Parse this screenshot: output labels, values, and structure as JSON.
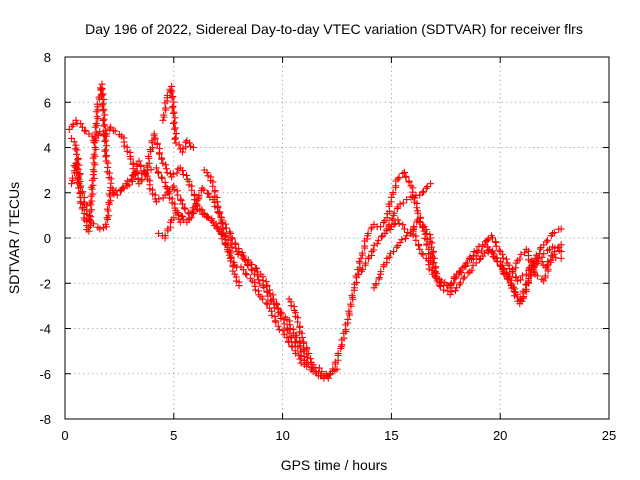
{
  "chart_data": {
    "type": "scatter",
    "title": "Day 196 of 2022, Sidereal Day-to-day VTEC variation (SDTVAR) for receiver flrs",
    "xlabel": "GPS time / hours",
    "ylabel": "SDTVAR / TECUs",
    "xlim": [
      0,
      25
    ],
    "ylim": [
      -8,
      8
    ],
    "xticks": [
      0,
      5,
      10,
      15,
      20,
      25
    ],
    "yticks": [
      -8,
      -6,
      -4,
      -2,
      0,
      2,
      4,
      6,
      8
    ],
    "grid": true,
    "marker": "plus",
    "color": "#ff0000",
    "series": [
      {
        "name": "track-1",
        "x": [
          0.2,
          0.5,
          0.8,
          1.1,
          1.3,
          1.6,
          1.9,
          2.1,
          2.6,
          3.0,
          3.4,
          3.8,
          4.2,
          4.7,
          5.1,
          5.6,
          6.0,
          6.4,
          6.8,
          7.1,
          7.5,
          7.9,
          8.3,
          8.7,
          9.1,
          9.5,
          9.9,
          10.3,
          10.7,
          11.1,
          11.5,
          11.9,
          12.2
        ],
        "y": [
          4.8,
          5.2,
          4.9,
          4.6,
          4.3,
          4.7,
          4.5,
          4.9,
          4.5,
          3.6,
          2.4,
          3.0,
          3.1,
          2.2,
          1.2,
          0.7,
          1.4,
          1.1,
          0.7,
          0.3,
          -0.1,
          -0.6,
          -1.0,
          -1.6,
          -2.1,
          -2.8,
          -3.4,
          -4.2,
          -4.8,
          -5.5,
          -5.9,
          -6.1,
          -6.0
        ]
      },
      {
        "name": "track-2",
        "x": [
          0.3,
          0.5,
          0.7,
          0.9,
          1.1,
          1.3,
          1.5,
          1.7,
          1.9,
          2.2,
          2.7,
          3.1,
          3.4,
          3.8,
          4.2,
          4.6,
          5.0,
          5.4,
          5.8,
          6.3,
          6.8,
          7.2,
          7.6,
          8.0,
          8.5,
          9.0,
          9.4,
          9.8,
          10.2,
          10.6,
          11.0,
          11.4,
          11.8,
          12.2,
          12.5
        ],
        "y": [
          2.4,
          3.3,
          1.8,
          0.8,
          0.3,
          2.8,
          5.8,
          6.8,
          3.4,
          2.0,
          2.2,
          2.5,
          3.4,
          2.6,
          1.6,
          1.9,
          2.3,
          1.5,
          0.9,
          2.2,
          1.7,
          0.8,
          0.2,
          -0.6,
          -1.1,
          -1.6,
          -2.3,
          -3.1,
          -3.6,
          -4.3,
          -5.0,
          -5.6,
          -5.9,
          -6.0,
          -5.8
        ]
      },
      {
        "name": "track-3",
        "x": [
          0.3,
          0.5,
          0.7,
          0.9,
          1.2,
          1.6,
          1.9,
          2.1,
          2.4,
          2.8,
          3.3,
          3.7,
          4.1,
          4.5,
          4.9,
          5.3,
          5.7,
          6.2,
          6.6,
          7.0,
          7.4,
          7.8,
          8.2,
          8.6,
          9.0,
          9.4,
          9.8,
          10.2,
          10.6,
          11.0,
          11.4,
          11.8,
          12.1
        ],
        "y": [
          4.4,
          4.1,
          2.5,
          1.5,
          0.7,
          0.4,
          0.5,
          2.1,
          1.9,
          2.4,
          2.9,
          2.8,
          4.6,
          3.3,
          2.7,
          3.1,
          2.5,
          1.2,
          0.9,
          0.5,
          -0.3,
          -1.2,
          -1.4,
          -1.9,
          -2.6,
          -3.1,
          -3.9,
          -4.4,
          -5.1,
          -5.6,
          -5.9,
          -6.1,
          -6.2
        ]
      },
      {
        "name": "track-4",
        "x": [
          4.3,
          4.6,
          4.9,
          5.1,
          5.3
        ],
        "y": [
          0.2,
          0.0,
          0.8,
          1.1,
          0.7
        ]
      },
      {
        "name": "track-5",
        "x": [
          4.5,
          4.7,
          4.9,
          5.1,
          5.4,
          5.6,
          5.9
        ],
        "y": [
          5.2,
          6.2,
          6.7,
          4.2,
          3.8,
          4.3,
          4.0
        ]
      },
      {
        "name": "track-6",
        "x": [
          6.4,
          6.7,
          7.0,
          7.3,
          7.6,
          7.8,
          8.0
        ],
        "y": [
          3.0,
          2.7,
          1.6,
          0.2,
          -0.9,
          -1.6,
          -2.1
        ]
      },
      {
        "name": "track-7",
        "x": [
          10.3,
          10.6,
          10.9,
          11.2
        ],
        "y": [
          -2.7,
          -3.3,
          -4.4,
          -5.1
        ]
      },
      {
        "name": "track-8",
        "x": [
          11.9,
          12.3,
          12.7,
          13.0,
          13.3,
          13.6,
          13.9,
          14.2,
          14.5,
          14.8,
          15.0,
          15.3,
          15.6,
          15.9,
          16.2,
          16.5,
          16.8,
          17.1,
          17.4,
          17.7,
          18.0,
          18.4,
          18.8,
          19.2,
          19.6,
          20.0,
          20.4,
          20.8,
          21.2,
          21.6,
          22.0,
          22.4,
          22.8
        ],
        "y": [
          -6.2,
          -5.9,
          -4.8,
          -3.6,
          -2.2,
          -0.9,
          0.1,
          0.6,
          0.5,
          0.9,
          1.8,
          2.6,
          2.9,
          2.3,
          1.2,
          0.3,
          -0.9,
          -1.8,
          -2.1,
          -2.2,
          -1.6,
          -1.2,
          -0.6,
          -0.3,
          0.1,
          -0.6,
          -1.2,
          -1.9,
          -1.6,
          -0.9,
          -0.3,
          0.2,
          0.4
        ]
      },
      {
        "name": "track-9",
        "x": [
          13.5,
          13.8,
          14.1,
          14.4,
          14.7,
          15.0,
          15.3,
          15.6,
          15.9,
          16.2,
          16.5,
          16.8,
          17.1,
          17.4,
          17.7,
          18.0,
          18.3,
          18.6,
          18.9,
          19.2,
          19.5,
          19.8,
          20.1,
          20.4,
          20.7,
          21.0,
          21.3,
          21.6,
          22.0,
          22.4,
          22.8
        ],
        "y": [
          -1.6,
          -1.2,
          -0.6,
          -0.1,
          0.2,
          0.5,
          0.8,
          0.4,
          0.2,
          0.8,
          0.5,
          0.0,
          -1.9,
          -2.3,
          -2.5,
          -2.2,
          -1.8,
          -1.5,
          -1.1,
          -0.8,
          -0.5,
          -0.9,
          -1.2,
          -1.8,
          -2.4,
          -2.8,
          -2.0,
          -1.2,
          -0.7,
          -0.4,
          -0.6
        ]
      },
      {
        "name": "track-10",
        "x": [
          14.2,
          14.5,
          14.8,
          15.1,
          15.4,
          15.7,
          16.0,
          16.3,
          16.6,
          16.9,
          17.3,
          17.7,
          18.1,
          18.5,
          18.9,
          19.3,
          19.7,
          20.1,
          20.5,
          20.9,
          21.3,
          21.7,
          22.1,
          22.5,
          22.8
        ],
        "y": [
          -2.2,
          -1.6,
          -0.9,
          -0.6,
          -0.2,
          0.1,
          0.3,
          -0.5,
          -0.9,
          -1.6,
          -1.9,
          -2.1,
          -1.6,
          -1.1,
          -0.8,
          -0.3,
          -0.7,
          -1.4,
          -2.1,
          -2.9,
          -1.8,
          -0.9,
          -1.3,
          -0.6,
          -0.3
        ]
      },
      {
        "name": "track-11",
        "x": [
          14.8,
          15.1,
          15.4,
          15.7,
          16.0,
          16.3,
          16.6,
          16.8
        ],
        "y": [
          0.4,
          1.0,
          1.5,
          1.7,
          1.8,
          1.9,
          2.2,
          2.4
        ]
      },
      {
        "name": "track-12",
        "x": [
          20.0,
          20.4,
          20.8,
          21.2,
          21.6,
          22.0,
          22.4,
          22.8
        ],
        "y": [
          -1.2,
          -1.8,
          -1.0,
          -0.5,
          -1.6,
          -1.9,
          -0.8,
          -0.9
        ]
      }
    ]
  }
}
